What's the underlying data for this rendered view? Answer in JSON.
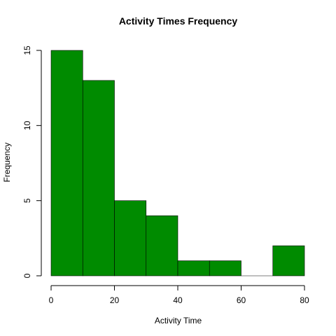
{
  "chart_data": {
    "type": "bar",
    "title": "Activity Times Frequency",
    "xlabel": "Activity Time",
    "ylabel": "Frequency",
    "bins": [
      {
        "start": 0,
        "end": 10,
        "value": 15
      },
      {
        "start": 10,
        "end": 20,
        "value": 13
      },
      {
        "start": 20,
        "end": 30,
        "value": 5
      },
      {
        "start": 30,
        "end": 40,
        "value": 4
      },
      {
        "start": 40,
        "end": 50,
        "value": 1
      },
      {
        "start": 50,
        "end": 60,
        "value": 1
      },
      {
        "start": 60,
        "end": 70,
        "value": 0
      },
      {
        "start": 70,
        "end": 80,
        "value": 2
      }
    ],
    "xlim": [
      0,
      80
    ],
    "ylim": [
      0,
      15
    ],
    "xticks": [
      0,
      20,
      40,
      60,
      80
    ],
    "yticks": [
      0,
      5,
      10,
      15
    ],
    "grid": false,
    "legend": "none",
    "bar_color": "#008b00"
  }
}
